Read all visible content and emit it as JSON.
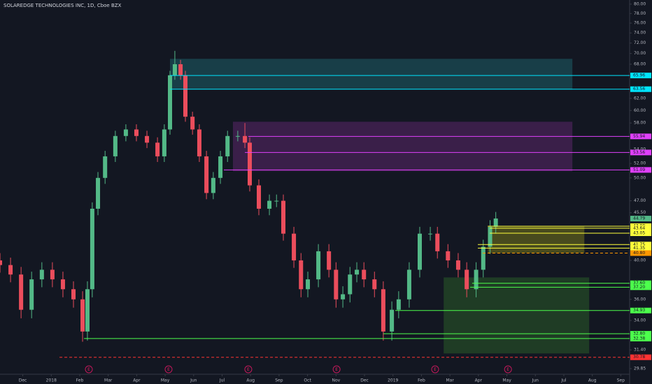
{
  "chart_data": {
    "type": "candlestick",
    "title": "SOLAREDGE TECHNOLOGIES INC, 1D, Cboe BZX",
    "log_scale": true,
    "up_color": "#53b987",
    "down_color": "#eb4d5c",
    "x": [
      -0.8,
      -0.43,
      -0.06,
      0.31,
      0.67,
      1.04,
      1.41,
      1.78,
      2.1,
      2.27,
      2.44,
      2.64,
      2.89,
      3.25,
      3.62,
      3.99,
      4.36,
      4.73,
      4.97,
      5.17,
      5.34,
      5.54,
      5.71,
      5.96,
      6.2,
      6.45,
      6.69,
      6.94,
      7.19,
      7.55,
      7.8,
      7.97,
      8.29,
      8.66,
      8.91,
      9.15,
      9.52,
      9.77,
      10.01,
      10.38,
      10.75,
      11.0,
      11.24,
      11.49,
      11.73,
      11.98,
      12.35,
      12.66,
      12.96,
      13.2,
      13.57,
      13.94,
      14.31,
      14.56,
      14.93,
      15.29,
      15.59,
      15.92,
      16.17,
      16.41,
      16.61
    ],
    "open": [
      40,
      39.5,
      38.5,
      35,
      38,
      39,
      38,
      37,
      36,
      33,
      37,
      46,
      50,
      53,
      56,
      57,
      56,
      55,
      53,
      57,
      66,
      68,
      66,
      59,
      57,
      53,
      48,
      50,
      53,
      56,
      56,
      55,
      49,
      46,
      47,
      47,
      43,
      40,
      37,
      38,
      41,
      39,
      36,
      36.5,
      38.5,
      39,
      38,
      37,
      33,
      35,
      36,
      39,
      43,
      43,
      41,
      40,
      39,
      37,
      39,
      41.5,
      43.8
    ],
    "high": [
      40.8,
      40.3,
      39.3,
      38.8,
      39.8,
      39.8,
      38.8,
      37.8,
      36.8,
      37.8,
      46.8,
      50.8,
      53.8,
      56.8,
      57.8,
      57.8,
      56.8,
      55.8,
      57.8,
      66.8,
      70.5,
      68.8,
      66.8,
      59.8,
      57.8,
      53.8,
      50.8,
      53.8,
      56.8,
      56.8,
      58.0,
      55.8,
      49.8,
      47.8,
      47.8,
      47.8,
      43.8,
      40.8,
      38.8,
      41.8,
      41.8,
      39.8,
      37.3,
      39.3,
      39.8,
      39.8,
      38.8,
      37.8,
      35.8,
      36.8,
      39.8,
      43.8,
      43.8,
      43.8,
      41.8,
      40.8,
      39.8,
      39.8,
      42.3,
      44.6,
      45.6
    ],
    "low": [
      38.7,
      37.7,
      34.2,
      34.2,
      37.2,
      37.2,
      36.2,
      35.2,
      32.1,
      32.2,
      36.2,
      45.2,
      49.2,
      52.2,
      55.2,
      55.2,
      54.2,
      52.2,
      52.2,
      56.2,
      65.2,
      65.2,
      58.2,
      56.2,
      52.2,
      47.2,
      47.2,
      49.2,
      52.2,
      55.2,
      54.2,
      48.2,
      45.2,
      45.2,
      46.2,
      42.2,
      39.2,
      36.2,
      36.2,
      37.2,
      38.2,
      35.2,
      35.2,
      35.7,
      37.7,
      37.2,
      36.2,
      32.2,
      32.2,
      34.2,
      35.2,
      38.2,
      42.2,
      40.2,
      39.2,
      38.2,
      36.2,
      36.2,
      38.2,
      40.7,
      43.0
    ],
    "close": [
      39.5,
      38.5,
      35,
      38,
      39,
      38,
      37,
      36,
      33,
      37,
      46,
      50,
      53,
      56,
      57,
      56,
      55,
      53,
      57,
      66,
      68,
      66,
      59,
      57,
      53,
      48,
      50,
      53,
      56,
      56,
      55,
      49,
      46,
      47,
      47,
      43,
      40,
      37,
      38,
      41,
      39,
      36,
      36.5,
      38.5,
      39,
      38,
      37,
      33,
      35,
      36,
      39,
      43,
      43,
      41,
      40,
      39,
      37,
      39,
      41.5,
      43.8,
      44.8
    ],
    "xlim": [
      -0.8,
      21.31
    ],
    "ylim": [
      29.4,
      80.9
    ],
    "xticks": [
      {
        "value": 0,
        "label": "Dec"
      },
      {
        "value": 1,
        "label": "2018"
      },
      {
        "value": 2,
        "label": "Feb"
      },
      {
        "value": 3,
        "label": "Mar"
      },
      {
        "value": 4,
        "label": "Apr"
      },
      {
        "value": 5,
        "label": "May"
      },
      {
        "value": 6,
        "label": "Jun"
      },
      {
        "value": 7,
        "label": "Jul"
      },
      {
        "value": 8,
        "label": "Aug"
      },
      {
        "value": 9,
        "label": "Sep"
      },
      {
        "value": 10,
        "label": "Oct"
      },
      {
        "value": 11,
        "label": "Nov"
      },
      {
        "value": 12,
        "label": "Dec"
      },
      {
        "value": 13,
        "label": "2019"
      },
      {
        "value": 14,
        "label": "Feb"
      },
      {
        "value": 15,
        "label": "Mar"
      },
      {
        "value": 16,
        "label": "Apr"
      },
      {
        "value": 17,
        "label": "May"
      },
      {
        "value": 18,
        "label": "Jun"
      },
      {
        "value": 19,
        "label": "Jul"
      },
      {
        "value": 20,
        "label": "Aug"
      },
      {
        "value": 21,
        "label": "Sep"
      }
    ],
    "yticks": [
      {
        "value": 80,
        "label": "80.00"
      },
      {
        "value": 78,
        "label": "78.00"
      },
      {
        "value": 76,
        "label": "76.00"
      },
      {
        "value": 74,
        "label": "74.00"
      },
      {
        "value": 72,
        "label": "72.00"
      },
      {
        "value": 70,
        "label": "70.00"
      },
      {
        "value": 68,
        "label": "68.00"
      },
      {
        "value": 62,
        "label": "62.00"
      },
      {
        "value": 60,
        "label": "60.00"
      },
      {
        "value": 58,
        "label": "58.00"
      },
      {
        "value": 54,
        "label": "54.00"
      },
      {
        "value": 52,
        "label": "52.00"
      },
      {
        "value": 50,
        "label": "50.00"
      },
      {
        "value": 47,
        "label": "47.00"
      },
      {
        "value": 45.5,
        "label": "45.50"
      },
      {
        "value": 40,
        "label": "40.00"
      },
      {
        "value": 36,
        "label": "36.00"
      },
      {
        "value": 34,
        "label": "34.00"
      },
      {
        "value": 31.4,
        "label": "31.40"
      },
      {
        "value": 29.85,
        "label": "29.85"
      }
    ],
    "zones": [
      {
        "x": [
          5.17,
          19.3
        ],
        "y": [
          63.5,
          69.0
        ],
        "color": "#1f6f78"
      },
      {
        "x": [
          7.38,
          19.3
        ],
        "y": [
          50.9,
          58.2
        ],
        "color": "#6a2a7a"
      },
      {
        "x": [
          16.33,
          19.72
        ],
        "y": [
          40.8,
          43.9
        ],
        "color": "#8a8a1a"
      },
      {
        "x": [
          14.78,
          19.89
        ],
        "y": [
          31.1,
          38.2
        ],
        "color": "#2f6b2a"
      }
    ],
    "levels": [
      {
        "value": 65.96,
        "label": "65.96",
        "start": 5.17,
        "color": "#00e5ff",
        "dashed": false
      },
      {
        "value": 63.56,
        "label": "63.56",
        "start": 5.17,
        "color": "#00e5ff",
        "dashed": false
      },
      {
        "value": 55.94,
        "label": "55.94",
        "start": 7.92,
        "color": "#e040fb",
        "dashed": false
      },
      {
        "value": 53.56,
        "label": "53.56",
        "start": 7.8,
        "color": "#e040fb",
        "dashed": false
      },
      {
        "value": 51.09,
        "label": "51.09",
        "start": 7.06,
        "color": "#e040fb",
        "dashed": false
      },
      {
        "value": 43.88,
        "label": "43.88",
        "start": 16.33,
        "color": "#ffff3b",
        "dashed": false
      },
      {
        "value": 43.64,
        "label": "43.64",
        "start": 16.4,
        "color": "#ffff3b",
        "dashed": false
      },
      {
        "value": 43.05,
        "label": "43.05",
        "start": 16.4,
        "color": "#ffff3b",
        "dashed": false
      },
      {
        "value": 41.75,
        "label": "41.75",
        "start": 15.98,
        "color": "#ffff3b",
        "dashed": false
      },
      {
        "value": 41.35,
        "label": "41.35",
        "start": 15.98,
        "color": "#ffff3b",
        "dashed": false
      },
      {
        "value": 40.8,
        "label": "40.80",
        "start": 16.15,
        "color": "#ff9800",
        "dashed": true
      },
      {
        "value": 37.6,
        "label": "37.60",
        "start": 15.78,
        "color": "#4cff4c",
        "dashed": false
      },
      {
        "value": 37.2,
        "label": "37.20",
        "start": 15.71,
        "color": "#4cff4c",
        "dashed": false
      },
      {
        "value": 34.93,
        "label": "34.93",
        "start": 13.08,
        "color": "#4cff4c",
        "dashed": false
      },
      {
        "value": 32.8,
        "label": "32.80",
        "start": 12.66,
        "color": "#4cff4c",
        "dashed": false
      },
      {
        "value": 32.38,
        "label": "32.38",
        "start": 2.15,
        "color": "#4cff4c",
        "dashed": false
      },
      {
        "value": 30.78,
        "label": "30.78",
        "start": 1.29,
        "color": "#ff3333",
        "dashed": true
      }
    ],
    "current_price": {
      "value": 44.79,
      "label": "44.79",
      "color": "#53b987"
    },
    "earnings": {
      "label": "E",
      "x": [
        2.32,
        5.12,
        7.92,
        11.02,
        14.48,
        17.04
      ]
    }
  }
}
